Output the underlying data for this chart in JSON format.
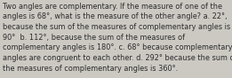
{
  "lines": [
    "Two angles are complementary. If the measure of one of the",
    "angles is 68°, what is the measure of the other angle? a. 22°,",
    "because the sum of the measures of complementary angles is",
    "90°  b. 112°, because the sum of the measures of",
    "complementary angles is 180°. c. 68° because complementary",
    "angles are congruent to each other. d. 292° because the sum of",
    "the measures of complementary angles is 360°."
  ],
  "background_color": "#ccc9c3",
  "text_color": "#2b2b2b",
  "font_size": 5.85,
  "fig_width": 2.61,
  "fig_height": 0.88,
  "dpi": 100
}
